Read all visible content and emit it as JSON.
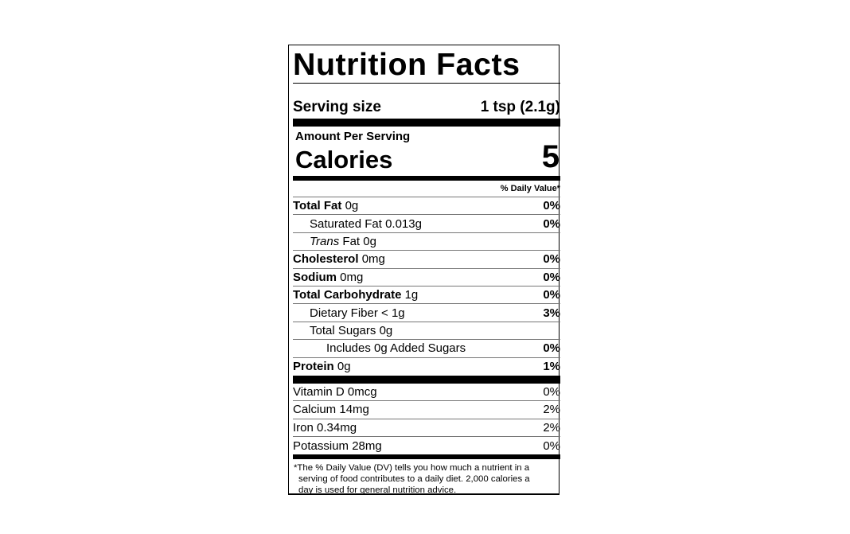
{
  "label": {
    "title": "Nutrition Facts",
    "serving_size_label": "Serving size",
    "serving_size_value": "1 tsp (2.1g)",
    "amount_per_serving": "Amount Per Serving",
    "calories_label": "Calories",
    "calories_value": "5",
    "daily_value_header": "% Daily Value*",
    "nutrients": [
      {
        "name": "Total Fat",
        "amount": "0g",
        "dv": "0%"
      },
      {
        "name": "Saturated Fat",
        "amount": "0.013g",
        "dv": "0%"
      },
      {
        "name": "Trans",
        "name_rest": "Fat",
        "amount": "0g",
        "dv": ""
      },
      {
        "name": "Cholesterol",
        "amount": "0mg",
        "dv": "0%"
      },
      {
        "name": "Sodium",
        "amount": "0mg",
        "dv": "0%"
      },
      {
        "name": "Total Carbohydrate",
        "amount": "1g",
        "dv": "0%"
      },
      {
        "name": "Dietary Fiber",
        "amount": "< 1g",
        "dv": "3%"
      },
      {
        "name": "Total Sugars",
        "amount": "0g",
        "dv": ""
      },
      {
        "name": "Includes 0g Added Sugars",
        "amount": "",
        "dv": "0%"
      },
      {
        "name": "Protein",
        "amount": "0g",
        "dv": "1%"
      }
    ],
    "vitamins": [
      {
        "name": "Vitamin D",
        "amount": "0mcg",
        "dv": "0%"
      },
      {
        "name": "Calcium",
        "amount": "14mg",
        "dv": "2%"
      },
      {
        "name": "Iron",
        "amount": "0.34mg",
        "dv": "2%"
      },
      {
        "name": "Potassium",
        "amount": "28mg",
        "dv": "0%"
      }
    ],
    "footnote_line1": "*The % Daily Value (DV) tells you how much a nutrient in a",
    "footnote_line2": "serving of food contributes to a daily diet. 2,000 calories a",
    "footnote_line3": "day is used for general nutrition advice."
  }
}
